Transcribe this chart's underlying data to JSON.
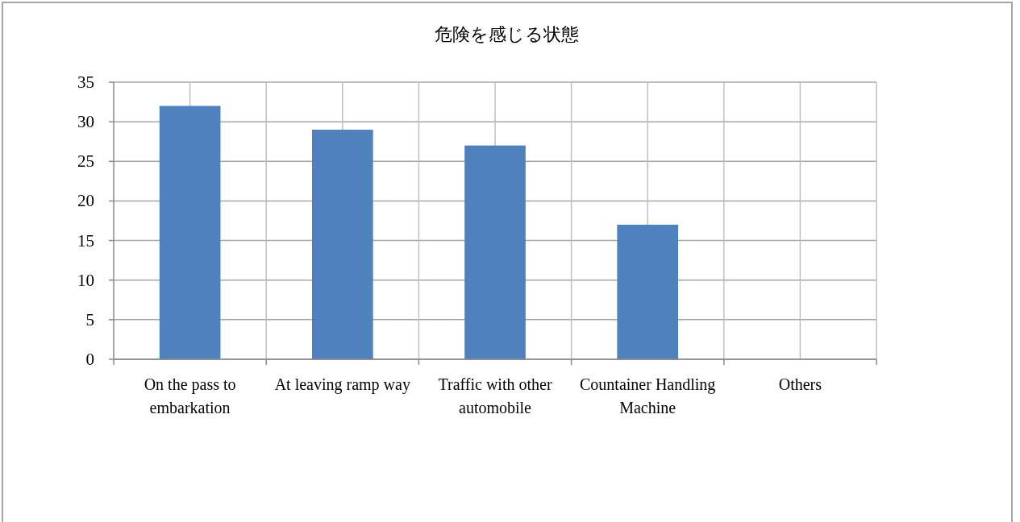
{
  "chart_data": {
    "type": "bar",
    "title": "危険を感じる状態",
    "categories": [
      "On the pass to embarkation",
      "At leaving ramp way",
      "Traffic with other automobile",
      "Countainer Handling Machine",
      "Others"
    ],
    "values": [
      32,
      29,
      27,
      17,
      0
    ],
    "color": "#4f81bd",
    "ylim": [
      0,
      35
    ],
    "yticks": [
      0,
      5,
      10,
      15,
      20,
      25,
      30,
      35
    ],
    "grid": true
  }
}
